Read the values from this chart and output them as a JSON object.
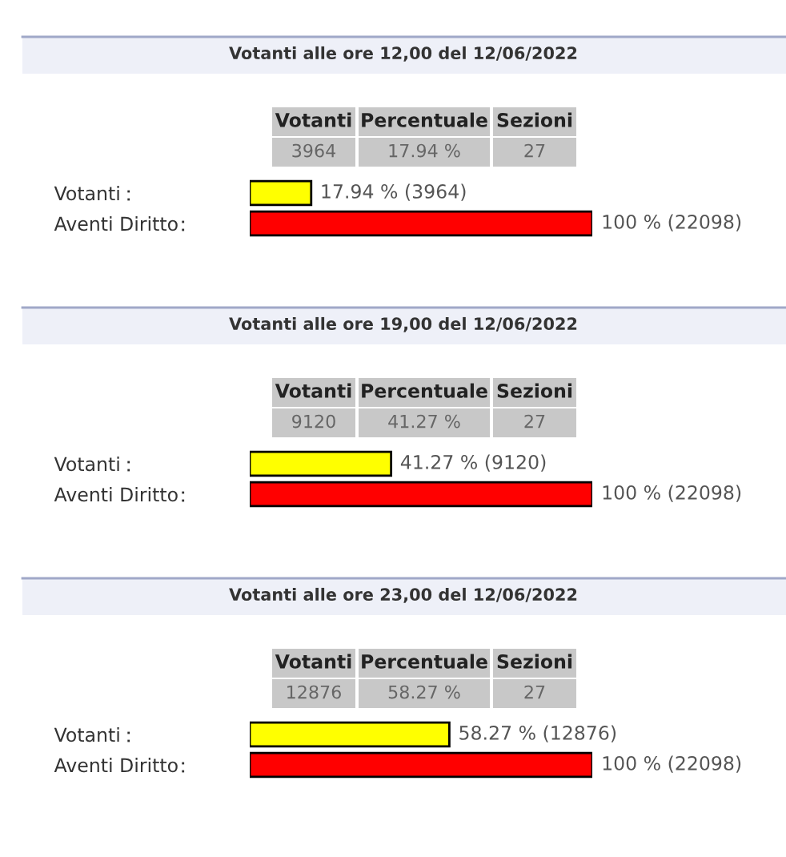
{
  "chart_data": [
    {
      "type": "bar",
      "orientation": "horizontal",
      "title": "Votanti alle ore 12,00 del 12/06/2022",
      "categories": [
        "Votanti",
        "Aventi Diritto"
      ],
      "values": [
        17.94,
        100
      ],
      "colors": [
        "#ffff00",
        "#ff0000"
      ],
      "value_labels": [
        "17.94 % (3964)",
        "100 % (22098)"
      ],
      "annotations": [
        "Votanti",
        "Percentuale",
        "Sezioni",
        "3964",
        "17.94 %",
        "27"
      ]
    },
    {
      "type": "bar",
      "orientation": "horizontal",
      "title": "Votanti alle ore 19,00 del 12/06/2022",
      "categories": [
        "Votanti",
        "Aventi Diritto"
      ],
      "values": [
        41.27,
        100
      ],
      "colors": [
        "#ffff00",
        "#ff0000"
      ],
      "value_labels": [
        "41.27 % (9120)",
        "100 % (22098)"
      ],
      "annotations": [
        "Votanti",
        "Percentuale",
        "Sezioni",
        "9120",
        "41.27 %",
        "27"
      ]
    },
    {
      "type": "bar",
      "orientation": "horizontal",
      "title": "Votanti alle ore 23,00 del 12/06/2022",
      "categories": [
        "Votanti",
        "Aventi Diritto"
      ],
      "values": [
        58.27,
        100
      ],
      "colors": [
        "#ffff00",
        "#ff0000"
      ],
      "value_labels": [
        "58.27 % (12876)",
        "100 % (22098)"
      ],
      "annotations": [
        "Votanti",
        "Percentuale",
        "Sezioni",
        "12876",
        "58.27 %",
        "27"
      ]
    }
  ]
}
